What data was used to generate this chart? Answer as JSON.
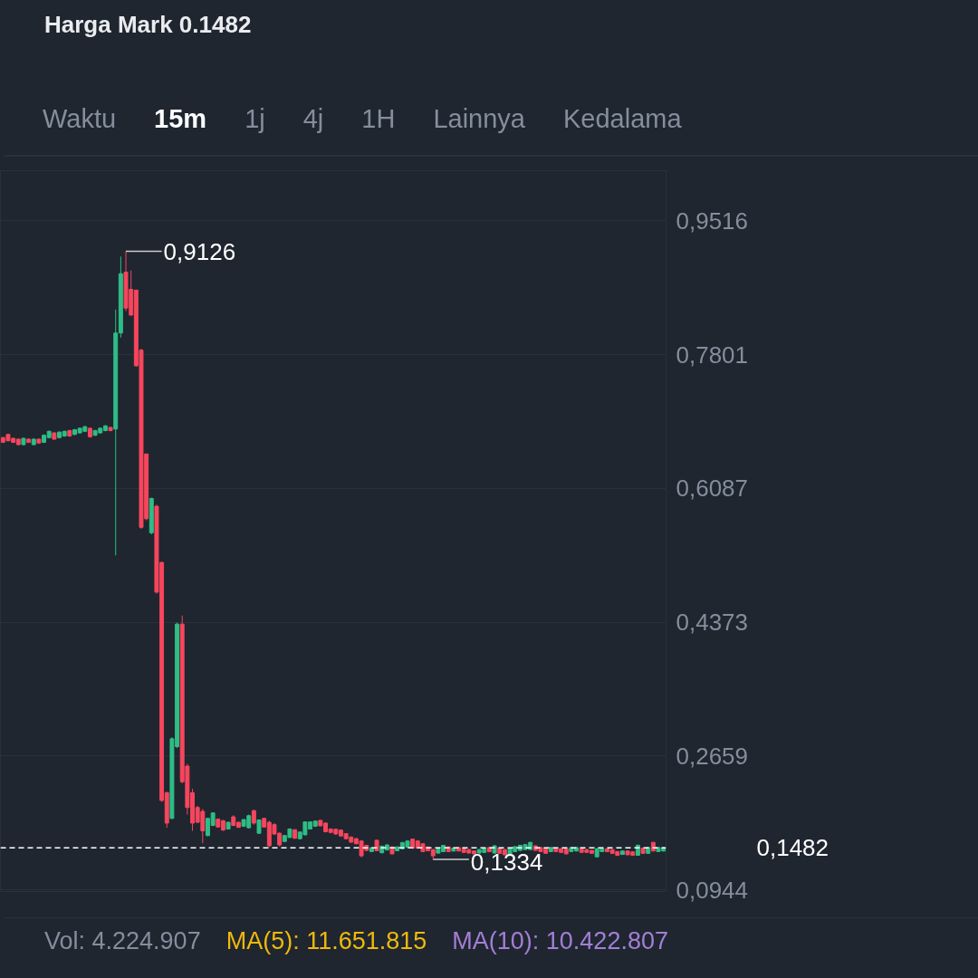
{
  "chart_data": {
    "type": "candlestick",
    "title": "Harga Mark 0.1482",
    "categories": [
      null,
      null,
      null,
      null,
      null,
      null,
      null,
      null,
      null,
      null,
      null,
      null,
      null,
      null,
      null,
      null,
      null,
      null,
      null,
      null,
      null,
      null,
      null,
      null,
      null,
      null,
      null,
      null,
      null,
      null,
      null,
      null,
      null,
      null,
      null,
      null,
      null,
      null,
      null,
      null,
      null,
      null,
      null,
      null,
      null,
      null,
      null,
      null,
      null,
      null,
      null,
      null,
      null,
      null,
      null,
      null,
      null,
      null,
      null,
      null,
      null,
      null,
      null,
      null,
      null,
      null,
      null,
      null,
      null,
      null,
      null,
      null,
      null,
      null,
      null,
      null,
      null,
      null,
      null,
      null,
      null,
      null,
      null,
      null,
      null,
      null,
      null,
      null,
      null,
      null,
      null,
      null,
      null,
      null,
      null,
      null,
      null,
      null,
      null,
      null,
      null,
      null,
      null,
      null,
      null,
      null,
      null,
      null,
      null,
      null,
      null,
      null,
      null,
      null,
      null,
      null,
      null,
      null,
      null,
      null,
      null,
      null,
      null,
      null,
      null,
      null,
      null,
      null,
      null,
      null
    ],
    "ohlc": [
      [
        0.674,
        0.675,
        0.667,
        0.668
      ],
      [
        0.678,
        0.679,
        0.669,
        0.67
      ],
      [
        0.673,
        0.674,
        0.667,
        0.668
      ],
      [
        0.672,
        0.673,
        0.664,
        0.665
      ],
      [
        0.665,
        0.674,
        0.664,
        0.673
      ],
      [
        0.672,
        0.673,
        0.667,
        0.668
      ],
      [
        0.665,
        0.673,
        0.664,
        0.672
      ],
      [
        0.672,
        0.673,
        0.666,
        0.667
      ],
      [
        0.668,
        0.678,
        0.667,
        0.677
      ],
      [
        0.674,
        0.683,
        0.673,
        0.682
      ],
      [
        0.68,
        0.681,
        0.671,
        0.672
      ],
      [
        0.674,
        0.682,
        0.673,
        0.681
      ],
      [
        0.676,
        0.683,
        0.675,
        0.682
      ],
      [
        0.683,
        0.684,
        0.675,
        0.676
      ],
      [
        0.678,
        0.685,
        0.677,
        0.684
      ],
      [
        0.68,
        0.687,
        0.679,
        0.686
      ],
      [
        0.682,
        0.689,
        0.681,
        0.688
      ],
      [
        0.686,
        0.687,
        0.674,
        0.675
      ],
      [
        0.677,
        0.684,
        0.676,
        0.683
      ],
      [
        0.68,
        0.687,
        0.679,
        0.686
      ],
      [
        0.683,
        0.69,
        0.682,
        0.689
      ],
      [
        0.687,
        0.688,
        0.682,
        0.683
      ],
      [
        0.685,
        0.838,
        0.523,
        0.808
      ],
      [
        0.808,
        0.906,
        0.802,
        0.884
      ],
      [
        0.886,
        0.9126,
        0.836,
        0.84
      ],
      [
        0.864,
        0.888,
        0.83,
        0.831
      ],
      [
        0.863,
        0.863,
        0.765,
        0.766
      ],
      [
        0.786,
        0.788,
        0.557,
        0.559
      ],
      [
        0.653,
        0.653,
        0.568,
        0.57
      ],
      [
        0.552,
        0.597,
        0.55,
        0.596
      ],
      [
        0.586,
        0.588,
        0.474,
        0.476
      ],
      [
        0.514,
        0.515,
        0.207,
        0.209
      ],
      [
        0.219,
        0.22,
        0.174,
        0.18
      ],
      [
        0.186,
        0.29,
        0.185,
        0.288
      ],
      [
        0.278,
        0.437,
        0.276,
        0.435
      ],
      [
        0.435,
        0.446,
        0.231,
        0.233
      ],
      [
        0.253,
        0.256,
        0.191,
        0.2
      ],
      [
        0.219,
        0.224,
        0.17,
        0.18
      ],
      [
        0.2,
        0.202,
        0.18,
        0.181
      ],
      [
        0.195,
        0.198,
        0.154,
        0.17
      ],
      [
        0.164,
        0.187,
        0.163,
        0.186
      ],
      [
        0.177,
        0.194,
        0.176,
        0.193
      ],
      [
        0.185,
        0.186,
        0.174,
        0.175
      ],
      [
        0.183,
        0.184,
        0.17,
        0.171
      ],
      [
        0.1725,
        0.182,
        0.172,
        0.181
      ],
      [
        0.188,
        0.19,
        0.176,
        0.177
      ],
      [
        0.181,
        0.182,
        0.174,
        0.1745
      ],
      [
        0.176,
        0.185,
        0.175,
        0.1845
      ],
      [
        0.174,
        0.191,
        0.173,
        0.1895
      ],
      [
        0.196,
        0.197,
        0.178,
        0.18
      ],
      [
        0.167,
        0.185,
        0.166,
        0.184
      ],
      [
        0.186,
        0.187,
        0.174,
        0.175
      ],
      [
        0.181,
        0.183,
        0.149,
        0.151
      ],
      [
        0.178,
        0.18,
        0.165,
        0.166
      ],
      [
        0.167,
        0.168,
        0.15,
        0.152
      ],
      [
        0.1565,
        0.165,
        0.156,
        0.164
      ],
      [
        0.1615,
        0.173,
        0.161,
        0.1725
      ],
      [
        0.1715,
        0.172,
        0.16,
        0.1605
      ],
      [
        0.16,
        0.169,
        0.159,
        0.1685
      ],
      [
        0.165,
        0.182,
        0.164,
        0.1815
      ],
      [
        0.1725,
        0.182,
        0.172,
        0.1815
      ],
      [
        0.176,
        0.183,
        0.175,
        0.1825
      ],
      [
        0.1835,
        0.184,
        0.176,
        0.1765
      ],
      [
        0.18,
        0.181,
        0.168,
        0.169
      ],
      [
        0.1725,
        0.173,
        0.167,
        0.168
      ],
      [
        0.172,
        0.173,
        0.165,
        0.166
      ],
      [
        0.171,
        0.172,
        0.163,
        0.1635
      ],
      [
        0.1665,
        0.167,
        0.159,
        0.16
      ],
      [
        0.162,
        0.163,
        0.155,
        0.1555
      ],
      [
        0.16,
        0.161,
        0.153,
        0.1535
      ],
      [
        0.157,
        0.158,
        0.136,
        0.138
      ],
      [
        0.1515,
        0.152,
        0.144,
        0.145
      ],
      [
        0.1435,
        0.149,
        0.143,
        0.1485
      ],
      [
        0.158,
        0.159,
        0.144,
        0.1445
      ],
      [
        0.142,
        0.151,
        0.141,
        0.1505
      ],
      [
        0.1455,
        0.153,
        0.145,
        0.152
      ],
      [
        0.1495,
        0.15,
        0.14,
        0.1405
      ],
      [
        0.1445,
        0.15,
        0.144,
        0.1495
      ],
      [
        0.147,
        0.156,
        0.146,
        0.155
      ],
      [
        0.149,
        0.158,
        0.148,
        0.157
      ],
      [
        0.1595,
        0.16,
        0.147,
        0.148
      ],
      [
        0.157,
        0.158,
        0.147,
        0.148
      ],
      [
        0.1535,
        0.154,
        0.143,
        0.1435
      ],
      [
        0.1495,
        0.15,
        0.144,
        0.1445
      ],
      [
        0.146,
        0.147,
        0.1334,
        0.138
      ],
      [
        0.1415,
        0.148,
        0.141,
        0.147
      ],
      [
        0.1435,
        0.152,
        0.143,
        0.1515
      ],
      [
        0.1495,
        0.15,
        0.143,
        0.1435
      ],
      [
        0.1442,
        0.149,
        0.1435,
        0.1479
      ],
      [
        0.1487,
        0.1492,
        0.1438,
        0.1442
      ],
      [
        0.1472,
        0.1478,
        0.1418,
        0.1424
      ],
      [
        0.1461,
        0.1466,
        0.1411,
        0.1416
      ],
      [
        0.1442,
        0.1447,
        0.14,
        0.1405
      ],
      [
        0.1416,
        0.1466,
        0.1411,
        0.1461
      ],
      [
        0.1424,
        0.1484,
        0.1419,
        0.1479
      ],
      [
        0.1487,
        0.1492,
        0.143,
        0.1435
      ],
      [
        0.1416,
        0.1514,
        0.1411,
        0.1509
      ],
      [
        0.1479,
        0.1484,
        0.1407,
        0.1412
      ],
      [
        0.1461,
        0.1466,
        0.1389,
        0.1394
      ],
      [
        0.1405,
        0.1484,
        0.14,
        0.1479
      ],
      [
        0.1435,
        0.1503,
        0.143,
        0.1498
      ],
      [
        0.145,
        0.1521,
        0.1445,
        0.1516
      ],
      [
        0.1461,
        0.1529,
        0.1456,
        0.1524
      ],
      [
        0.1461,
        0.1558,
        0.1456,
        0.1553
      ],
      [
        0.1509,
        0.1514,
        0.1445,
        0.145
      ],
      [
        0.1487,
        0.1492,
        0.143,
        0.1435
      ],
      [
        0.1479,
        0.1484,
        0.1407,
        0.1412
      ],
      [
        0.1435,
        0.1492,
        0.143,
        0.1487
      ],
      [
        0.1479,
        0.1484,
        0.143,
        0.1435
      ],
      [
        0.1472,
        0.1477,
        0.1419,
        0.1424
      ],
      [
        0.1468,
        0.1473,
        0.14,
        0.1405
      ],
      [
        0.1435,
        0.1492,
        0.143,
        0.1487
      ],
      [
        0.1442,
        0.1492,
        0.1437,
        0.1487
      ],
      [
        0.1468,
        0.1473,
        0.1419,
        0.1424
      ],
      [
        0.1461,
        0.1466,
        0.1419,
        0.1424
      ],
      [
        0.145,
        0.1455,
        0.1407,
        0.1412
      ],
      [
        0.1368,
        0.1477,
        0.1363,
        0.1472
      ],
      [
        0.1435,
        0.1477,
        0.143,
        0.1472
      ],
      [
        0.1468,
        0.1473,
        0.143,
        0.1435
      ],
      [
        0.1461,
        0.1466,
        0.1407,
        0.1412
      ],
      [
        0.1435,
        0.144,
        0.1381,
        0.1386
      ],
      [
        0.1398,
        0.1447,
        0.1393,
        0.1442
      ],
      [
        0.1442,
        0.1447,
        0.1389,
        0.1394
      ],
      [
        0.1431,
        0.1436,
        0.1381,
        0.1386
      ],
      [
        0.1387,
        0.1522,
        0.1382,
        0.1517
      ],
      [
        0.1479,
        0.1484,
        0.1407,
        0.1412
      ],
      [
        0.1412,
        0.1492,
        0.1407,
        0.1487
      ],
      [
        0.1553,
        0.1558,
        0.1437,
        0.1442
      ],
      [
        0.1435,
        0.1492,
        0.143,
        0.1487
      ],
      [
        0.1442,
        0.1495,
        0.1437,
        0.1482
      ]
    ],
    "ylim": [
      0.0923,
      1.016
    ],
    "yticks": [
      {
        "value": 0.9516,
        "label": "0,9516"
      },
      {
        "value": 0.7801,
        "label": "0,7801"
      },
      {
        "value": 0.6087,
        "label": "0,6087"
      },
      {
        "value": 0.4373,
        "label": "0,4373"
      },
      {
        "value": 0.2659,
        "label": "0,2659"
      },
      {
        "value": 0.0944,
        "label": "0,0944"
      }
    ],
    "grid": "y",
    "tick_labels": "y",
    "ref_lines": [
      {
        "axis": "y",
        "value": 0.1482,
        "label": "0,1482",
        "color": "#ffffff",
        "line_style": "dashed"
      }
    ],
    "annotations": [
      "Waktu",
      "15m",
      "1j",
      "4j",
      "1H",
      "Lainnya",
      "Kedalama",
      "0,9126",
      "0,1334",
      "Vol: 4.224.907",
      "MA(5): 11.651.815",
      "MA(10): 10.422.807"
    ]
  }
}
